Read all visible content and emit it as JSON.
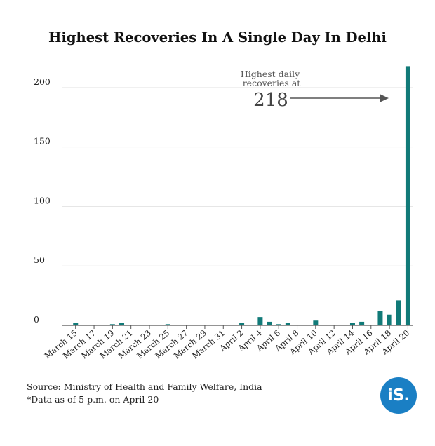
{
  "colors": {
    "bar": "#117a78",
    "grid": "#e6e6e6",
    "axis": "#555555",
    "arrow": "#555555",
    "logo_bg": "#1a7fc4"
  },
  "chart_data": {
    "type": "bar",
    "title": "Highest Recoveries In A Single Day In Delhi",
    "xlabel": "",
    "ylabel": "",
    "ylim": [
      0,
      220
    ],
    "yticks": [
      0,
      50,
      100,
      150,
      200
    ],
    "grid": true,
    "categories": [
      "March 14",
      "March 15",
      "March 16",
      "March 17",
      "March 18",
      "March 19",
      "March 20",
      "March 21",
      "March 22",
      "March 23",
      "March 24",
      "March 25",
      "March 26",
      "March 27",
      "March 28",
      "March 29",
      "March 30",
      "March 31",
      "April 1",
      "April 2",
      "April 3",
      "April 4",
      "April 5",
      "April 6",
      "April 7",
      "April 8",
      "April 9",
      "April 10",
      "April 11",
      "April 12",
      "April 13",
      "April 14",
      "April 15",
      "April 16",
      "April 17",
      "April 18",
      "April 19",
      "April 20"
    ],
    "tick_labels": [
      "March 15",
      "March 17",
      "March 19",
      "March 21",
      "March 23",
      "March 25",
      "March 27",
      "March 29",
      "March 31",
      "April 2",
      "April 4",
      "April 6",
      "April 8",
      "April 10",
      "April 12",
      "April 14",
      "April 16",
      "April 18",
      "April 20"
    ],
    "values": [
      0,
      2,
      0,
      0,
      0,
      1,
      2,
      0,
      0,
      0,
      0,
      1,
      0,
      0,
      0,
      0,
      0,
      0,
      0,
      2,
      0,
      7,
      3,
      1,
      2,
      0,
      0,
      4,
      0,
      0,
      0,
      2,
      3,
      0,
      12,
      9,
      21,
      218
    ],
    "annotation": {
      "line1": "Highest daily",
      "line2": "recoveries at",
      "value": "218"
    }
  },
  "footer": {
    "source": "Source: Ministry of Health and Family Welfare, India",
    "note": "*Data as of 5 p.m. on April 20"
  },
  "logo": {
    "text": "iS."
  }
}
